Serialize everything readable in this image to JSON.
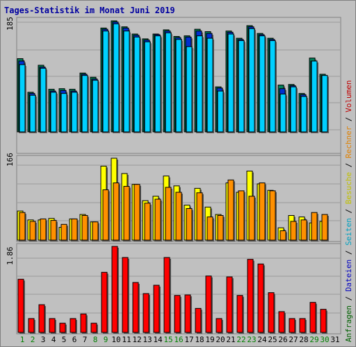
{
  "title": "Tages-Statistik im Monat Juni 2019",
  "panel_max_labels": {
    "top": "185",
    "middle": "166",
    "bottom": "1.86"
  },
  "legend_right": [
    {
      "text": "Anfragen",
      "color": "#006000"
    },
    {
      "text": " / ",
      "color": "#000000"
    },
    {
      "text": "Dateien",
      "color": "#0000c0"
    },
    {
      "text": " / ",
      "color": "#000000"
    },
    {
      "text": "Seiten",
      "color": "#00a0c0"
    },
    {
      "text": " / ",
      "color": "#000000"
    },
    {
      "text": "Besuche",
      "color": "#c0c000"
    },
    {
      "text": " / ",
      "color": "#000000"
    },
    {
      "text": "Rechner",
      "color": "#e08000"
    },
    {
      "text": " / ",
      "color": "#000000"
    },
    {
      "text": "Volumen",
      "color": "#c00000"
    }
  ],
  "chart_data": {
    "type": "bar",
    "title": "Tages-Statistik im Monat Juni 2019",
    "categories": [
      "1",
      "2",
      "3",
      "4",
      "5",
      "6",
      "7",
      "8",
      "9",
      "10",
      "11",
      "12",
      "13",
      "14",
      "15",
      "16",
      "17",
      "18",
      "19",
      "20",
      "21",
      "22",
      "23",
      "24",
      "25",
      "26",
      "27",
      "28",
      "29",
      "30",
      "31"
    ],
    "weekend_days": [
      "1",
      "2",
      "8",
      "9",
      "15",
      "16",
      "22",
      "23",
      "29",
      "30"
    ],
    "colors": {
      "anfragen": "#00805a",
      "dateien": "#0030d0",
      "seiten": "#00d0ff",
      "besuche": "#ffff00",
      "rechner": "#ff9000",
      "volumen": "#ff0000",
      "weekend_label": "#008000",
      "weekday_label": "#000000"
    },
    "panels": [
      {
        "name": "top",
        "max_label": "185",
        "ylim": [
          0,
          185
        ],
        "series": [
          {
            "name": "Anfragen",
            "values": [
              122,
              66,
              111,
              71,
              72,
              71,
              98,
              91,
              173,
              185,
              175,
              163,
              155,
              163,
              170,
              159,
              160,
              171,
              167,
              75,
              168,
              156,
              177,
              164,
              156,
              78,
              79,
              64,
              123,
              96,
              0
            ]
          },
          {
            "name": "Dateien",
            "values": [
              118,
              64,
              108,
              68,
              69,
              68,
              96,
              88,
              171,
              183,
              173,
              161,
              153,
              162,
              168,
              157,
              158,
              168,
              164,
              73,
              166,
              154,
              175,
              162,
              154,
              72,
              77,
              62,
              118,
              94,
              0
            ]
          },
          {
            "name": "Seiten",
            "values": [
              112,
              61,
              106,
              66,
              64,
              66,
              94,
              86,
              168,
              180,
              168,
              158,
              150,
              160,
              165,
              154,
              142,
              160,
              156,
              68,
              163,
              152,
              172,
              160,
              152,
              63,
              75,
              59,
              118,
              94,
              0
            ]
          }
        ]
      },
      {
        "name": "middle",
        "max_label": "166",
        "ylim": [
          0,
          166
        ],
        "series": [
          {
            "name": "Besuche",
            "values": [
              59,
              41,
              41,
              44,
              26,
              43,
              52,
              37,
              150,
              166,
              135,
              113,
              80,
              89,
              130,
              110,
              71,
              105,
              67,
              52,
              116,
              97,
              140,
              114,
              101,
              25,
              50,
              47,
              35,
              38,
              0
            ]
          },
          {
            "name": "Rechner",
            "values": [
              56,
              38,
              43,
              40,
              32,
              43,
              50,
              37,
              102,
              116,
              109,
              113,
              75,
              83,
              107,
              97,
              64,
              96,
              47,
              50,
              122,
              100,
              89,
              116,
              100,
              19,
              38,
              41,
              56,
              52,
              0
            ]
          }
        ]
      },
      {
        "name": "bottom",
        "max_label": "1.86",
        "ylim": [
          0,
          1.86
        ],
        "series": [
          {
            "name": "Volumen",
            "values": [
              1.15,
              0.3,
              0.6,
              0.3,
              0.2,
              0.3,
              0.4,
              0.2,
              1.3,
              1.86,
              1.62,
              1.08,
              0.84,
              1.02,
              1.62,
              0.8,
              0.81,
              0.52,
              1.22,
              0.3,
              1.2,
              0.8,
              1.58,
              1.48,
              0.86,
              0.45,
              0.3,
              0.3,
              0.65,
              0.5,
              0
            ]
          }
        ]
      }
    ]
  }
}
